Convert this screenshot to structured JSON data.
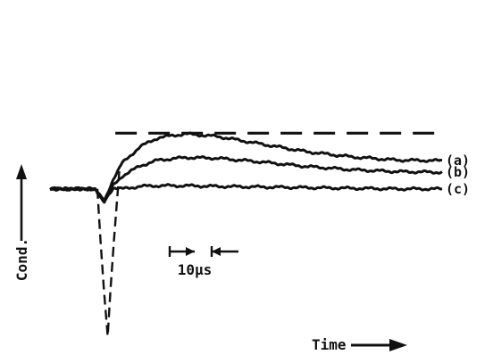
{
  "chart_data": {
    "type": "line",
    "ylabel": "Cond.",
    "xlabel": "Time",
    "scale_bar_label": "10μs",
    "x_unit": "μs",
    "y_unit": "relative conductivity (a.u.)",
    "xlim": [
      -12,
      76
    ],
    "ylim": [
      -2.3,
      1.0
    ],
    "grid": false,
    "legend": "labels at right end of each trace",
    "series": [
      {
        "name": "(a)",
        "label": "(a)",
        "x": [
          -12,
          -2,
          0,
          2,
          4,
          8,
          12,
          18,
          25,
          35,
          45,
          55,
          65,
          75
        ],
        "y": [
          0,
          0,
          -0.2,
          0.15,
          0.4,
          0.66,
          0.8,
          0.86,
          0.82,
          0.7,
          0.58,
          0.5,
          0.45,
          0.44
        ]
      },
      {
        "name": "(b)",
        "label": "(b)",
        "x": [
          -12,
          -2,
          0,
          2,
          4,
          8,
          12,
          18,
          25,
          35,
          45,
          55,
          65,
          75
        ],
        "y": [
          0,
          0,
          -0.2,
          0.05,
          0.2,
          0.36,
          0.45,
          0.49,
          0.48,
          0.42,
          0.35,
          0.3,
          0.27,
          0.26
        ]
      },
      {
        "name": "(c)",
        "label": "(c)",
        "x": [
          -12,
          -2,
          0,
          2,
          4,
          8,
          12,
          18,
          25,
          35,
          45,
          55,
          65,
          75
        ],
        "y": [
          0,
          0,
          -0.2,
          0.02,
          0.0,
          0.04,
          0.05,
          0.05,
          0.04,
          0.03,
          0.02,
          0.01,
          0.0,
          0.0
        ]
      }
    ],
    "excitation_pulse": {
      "x": [
        -1.5,
        -0.8,
        0,
        0.8,
        1.4,
        2.2,
        3.4
      ],
      "y": [
        0,
        -0.8,
        -1.6,
        -2.3,
        -1.6,
        -0.8,
        0.3
      ]
    },
    "reference_line": {
      "y": 0.87,
      "x": [
        2.5,
        74
      ]
    }
  }
}
